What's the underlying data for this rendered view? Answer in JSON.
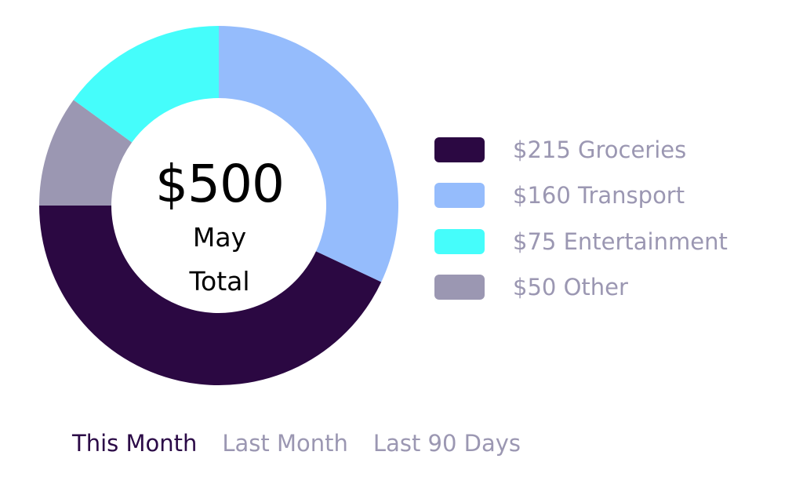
{
  "chart_data": {
    "type": "pie",
    "variant": "donut",
    "center": {
      "amount": "$500",
      "line1": "May",
      "line2": "Total"
    },
    "slices": [
      {
        "label": "Groceries",
        "value": 215,
        "display": "$215 Groceries",
        "color": "#2b0842"
      },
      {
        "label": "Transport",
        "value": 160,
        "display": "$160 Transport",
        "color": "#95bcfc"
      },
      {
        "label": "Entertainment",
        "value": 75,
        "display": "$75 Entertainment",
        "color": "#45fdfb"
      },
      {
        "label": "Other",
        "value": 50,
        "display": "$50 Other",
        "color": "#9b97b2"
      }
    ],
    "total": 500,
    "legend_position": "right"
  },
  "tabs": [
    {
      "label": "This Month",
      "active": true
    },
    {
      "label": "Last Month",
      "active": false
    },
    {
      "label": "Last 90 Days",
      "active": false
    }
  ],
  "colors": {
    "active_tab": "#2b0a47",
    "inactive_text": "#9b97b2"
  }
}
